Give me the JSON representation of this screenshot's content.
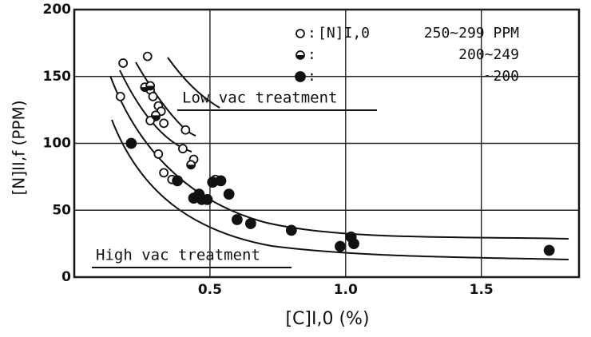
{
  "chart_data": {
    "type": "scatter",
    "x_label": "[C]I,0 (%)",
    "y_label": "[N]II,f (PPM)",
    "xlim": [
      0,
      1.86
    ],
    "ylim": [
      0,
      200
    ],
    "xticks": [
      0.5,
      {
        "value": 1.0,
        "label": "1.0"
      },
      1.5
    ],
    "yticks": [
      0,
      50,
      100,
      150,
      200
    ],
    "grid": true,
    "legend_title": "[N]I,0",
    "legend_position": "upper right",
    "annotations": [
      "Low vac treatment",
      "High vac treatment"
    ],
    "series": [
      {
        "name": "250~299 PPM",
        "color": "#111",
        "marker": "open",
        "x": [
          0.18,
          0.17,
          0.27,
          0.28,
          0.29,
          0.3,
          0.31,
          0.32,
          0.33,
          0.28,
          0.4,
          0.41,
          0.44,
          0.52,
          0.31,
          0.33,
          0.36
        ],
        "values": [
          160,
          135,
          165,
          140,
          135,
          120,
          128,
          124,
          115,
          117,
          96,
          110,
          88,
          73,
          92,
          78,
          73
        ]
      },
      {
        "name": "200~249",
        "color": "#111",
        "marker": "half",
        "x": [
          0.26,
          0.28,
          0.3,
          0.43
        ],
        "values": [
          142,
          143,
          121,
          84
        ]
      },
      {
        "name": "~200",
        "color": "#111",
        "marker": "filled",
        "x": [
          0.21,
          0.38,
          0.44,
          0.46,
          0.47,
          0.49,
          0.51,
          0.54,
          0.57,
          0.6,
          0.65,
          0.8,
          0.98,
          1.02,
          1.03,
          1.75
        ],
        "values": [
          100,
          72,
          59,
          62,
          58,
          58,
          71,
          72,
          62,
          43,
          40,
          35,
          23,
          30,
          25,
          20
        ]
      }
    ]
  }
}
